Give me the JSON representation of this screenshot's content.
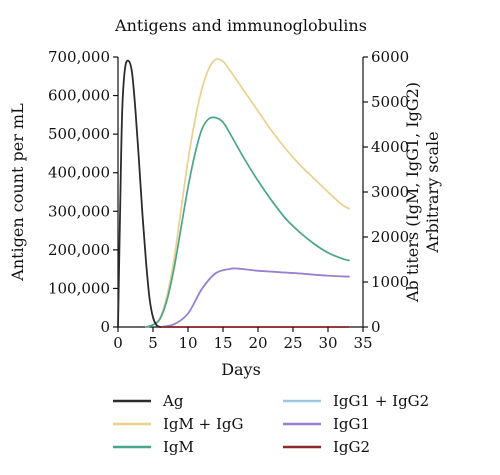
{
  "chart_data": {
    "type": "line",
    "title": "Antigens and immunoglobulins",
    "xlabel": "Days",
    "ylabel_left": "Antigen count per mL",
    "ylabel_right_line1": "Ab titers (IgM, IgG1, IgG2)",
    "ylabel_right_line2": "Arbitrary scale",
    "xlim": [
      0,
      35
    ],
    "ylim_left": [
      0,
      700000
    ],
    "ylim_right": [
      0,
      6000
    ],
    "x_ticks": [
      "0",
      "5",
      "10",
      "15",
      "20",
      "25",
      "30",
      "35"
    ],
    "y_left_ticks": [
      "0",
      "100,000",
      "200,000",
      "300,000",
      "400,000",
      "500,000",
      "600,000",
      "700,000"
    ],
    "y_right_ticks": [
      "0",
      "1000",
      "2000",
      "3000",
      "4000",
      "5000",
      "6000"
    ],
    "grid": false,
    "legend_position": "bottom",
    "series": [
      {
        "name": "Ag",
        "axis": "left",
        "color": "#2b2b2b",
        "points": [
          [
            0,
            0
          ],
          [
            0.3,
            300000
          ],
          [
            0.6,
            560000
          ],
          [
            1,
            670000
          ],
          [
            1.5,
            690000
          ],
          [
            2,
            660000
          ],
          [
            2.5,
            560000
          ],
          [
            3,
            430000
          ],
          [
            3.5,
            290000
          ],
          [
            4,
            170000
          ],
          [
            4.5,
            75000
          ],
          [
            5,
            25000
          ],
          [
            5.5,
            5000
          ],
          [
            6,
            0
          ]
        ]
      },
      {
        "name": "IgM + IgG",
        "axis": "right",
        "color": "#eccf8e",
        "points": [
          [
            4,
            0
          ],
          [
            5,
            50
          ],
          [
            6,
            200
          ],
          [
            7,
            700
          ],
          [
            8,
            1500
          ],
          [
            9,
            2600
          ],
          [
            10,
            3700
          ],
          [
            11,
            4600
          ],
          [
            12,
            5300
          ],
          [
            13,
            5750
          ],
          [
            14,
            5950
          ],
          [
            15,
            5900
          ],
          [
            16,
            5700
          ],
          [
            18,
            5250
          ],
          [
            20,
            4800
          ],
          [
            22,
            4350
          ],
          [
            24,
            3950
          ],
          [
            26,
            3600
          ],
          [
            28,
            3300
          ],
          [
            30,
            3000
          ],
          [
            32,
            2720
          ],
          [
            33,
            2630
          ]
        ]
      },
      {
        "name": "IgM",
        "axis": "right",
        "color": "#4aa68a",
        "points": [
          [
            4,
            0
          ],
          [
            5,
            50
          ],
          [
            6,
            180
          ],
          [
            7,
            600
          ],
          [
            8,
            1300
          ],
          [
            9,
            2200
          ],
          [
            10,
            3100
          ],
          [
            11,
            3850
          ],
          [
            12,
            4400
          ],
          [
            13,
            4630
          ],
          [
            14,
            4650
          ],
          [
            15,
            4550
          ],
          [
            16,
            4300
          ],
          [
            18,
            3750
          ],
          [
            20,
            3250
          ],
          [
            22,
            2800
          ],
          [
            24,
            2400
          ],
          [
            26,
            2100
          ],
          [
            28,
            1850
          ],
          [
            30,
            1650
          ],
          [
            32,
            1520
          ],
          [
            33,
            1480
          ]
        ]
      },
      {
        "name": "IgG1 + IgG2",
        "axis": "right",
        "color": "#9cc8e2",
        "points": [
          [
            6,
            0
          ],
          [
            8,
            60
          ],
          [
            10,
            300
          ],
          [
            12,
            850
          ],
          [
            14,
            1200
          ],
          [
            16,
            1290
          ],
          [
            17,
            1300
          ],
          [
            20,
            1250
          ],
          [
            25,
            1200
          ],
          [
            30,
            1140
          ],
          [
            33,
            1120
          ]
        ]
      },
      {
        "name": "IgG1",
        "axis": "right",
        "color": "#9a7fd0",
        "points": [
          [
            6,
            0
          ],
          [
            8,
            60
          ],
          [
            10,
            300
          ],
          [
            12,
            850
          ],
          [
            14,
            1200
          ],
          [
            16,
            1290
          ],
          [
            17,
            1300
          ],
          [
            20,
            1250
          ],
          [
            25,
            1200
          ],
          [
            30,
            1140
          ],
          [
            33,
            1120
          ]
        ]
      },
      {
        "name": "IgG2",
        "axis": "right",
        "color": "#8b2a2a",
        "points": [
          [
            6,
            0
          ],
          [
            33,
            0
          ]
        ]
      }
    ]
  }
}
